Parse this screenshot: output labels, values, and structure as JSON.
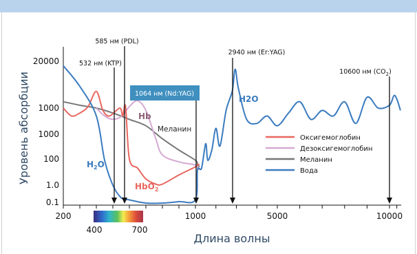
{
  "chart_data": {
    "type": "line",
    "xlabel": "Длина волны",
    "ylabel": "Уровень абсорбции",
    "x_ticks": [
      "200",
      "1000",
      "5000",
      "10000"
    ],
    "y_ticks": [
      "20000",
      "1000",
      "1000",
      "100",
      "1.0",
      "0.1"
    ],
    "spectrum_bar_labels": [
      "400",
      "700"
    ],
    "laser_markers": [
      {
        "wavelength": 532,
        "label": "532 нм (KTP)"
      },
      {
        "wavelength": 585,
        "label": "585 нм (PDL)"
      },
      {
        "wavelength": 1064,
        "label": "1064 нм (Nd:YAG)",
        "highlight": true
      },
      {
        "wavelength": 2940,
        "label": "2940 нм (Er:YAG)"
      },
      {
        "wavelength": 10600,
        "label_main": "10600 нм (CO",
        "label_sub": "2",
        "label_end": ")"
      }
    ],
    "curve_labels": [
      {
        "text_main": "H",
        "text_sub": "2",
        "text_end": "O",
        "color": "#3a7bbf"
      },
      {
        "text_main": "H2O",
        "text_sub": "",
        "text_end": "",
        "color": "#3a7bbf"
      },
      {
        "text_main": "Hb",
        "text_sub": "",
        "text_end": "",
        "color": "#8e6478"
      },
      {
        "text_main": "HbO",
        "text_sub": "2",
        "text_end": "",
        "color": "#e8675f"
      },
      {
        "text_main": "Меланин",
        "text_sub": "",
        "text_end": "",
        "color": "#222222"
      }
    ],
    "legend": {
      "placement": "right",
      "items": [
        "Оксигемоглобин",
        "Дезоксигемоглобин",
        "Меланин",
        "Вода"
      ]
    },
    "series": [
      {
        "name": "Оксигемоглобин",
        "color": "#e8675f",
        "points": [
          [
            200,
            1000
          ],
          [
            250,
            700
          ],
          [
            300,
            800
          ],
          [
            350,
            1100
          ],
          [
            400,
            2900
          ],
          [
            440,
            900
          ],
          [
            480,
            700
          ],
          [
            542,
            1000
          ],
          [
            560,
            700
          ],
          [
            577,
            1100
          ],
          [
            600,
            100
          ],
          [
            650,
            20
          ],
          [
            700,
            3
          ],
          [
            760,
            1.2
          ],
          [
            800,
            1.2
          ],
          [
            900,
            6
          ],
          [
            1000,
            25
          ],
          [
            1100,
            35
          ],
          [
            1200,
            40
          ]
        ]
      },
      {
        "name": "Дезоксигемоглобин",
        "color": "#d5a9d3",
        "points": [
          [
            400,
            1000
          ],
          [
            450,
            700
          ],
          [
            500,
            600
          ],
          [
            555,
            700
          ],
          [
            600,
            1100
          ],
          [
            650,
            1600
          ],
          [
            700,
            900
          ],
          [
            760,
            250
          ],
          [
            800,
            120
          ],
          [
            900,
            60
          ],
          [
            1000,
            35
          ],
          [
            1100,
            20
          ],
          [
            1200,
            15
          ]
        ]
      },
      {
        "name": "Меланин",
        "color": "#777777",
        "points": [
          [
            200,
            1500
          ],
          [
            300,
            1200
          ],
          [
            400,
            1000
          ],
          [
            500,
            800
          ],
          [
            600,
            600
          ],
          [
            700,
            450
          ],
          [
            800,
            250
          ],
          [
            900,
            150
          ],
          [
            1000,
            80
          ],
          [
            1100,
            40
          ],
          [
            1200,
            25
          ]
        ]
      },
      {
        "name": "Вода",
        "color": "#3a7bbf",
        "points": [
          [
            200,
            15000
          ],
          [
            300,
            4000
          ],
          [
            400,
            700
          ],
          [
            450,
            80
          ],
          [
            500,
            1.0
          ],
          [
            550,
            0.2
          ],
          [
            600,
            0.15
          ],
          [
            700,
            0.1
          ],
          [
            800,
            0.1
          ],
          [
            900,
            0.12
          ],
          [
            1000,
            0.15
          ],
          [
            1100,
            15
          ],
          [
            1300,
            20
          ],
          [
            1500,
            200
          ],
          [
            1600,
            80
          ],
          [
            1800,
            150
          ],
          [
            2000,
            400
          ],
          [
            2200,
            180
          ],
          [
            2500,
            900
          ],
          [
            2800,
            3000
          ],
          [
            2940,
            12000
          ],
          [
            3100,
            3500
          ],
          [
            3500,
            600
          ],
          [
            4000,
            500
          ],
          [
            4500,
            700
          ],
          [
            5000,
            450
          ],
          [
            5500,
            800
          ],
          [
            6000,
            1500
          ],
          [
            6500,
            600
          ],
          [
            7000,
            900
          ],
          [
            7500,
            700
          ],
          [
            8000,
            1500
          ],
          [
            8500,
            500
          ],
          [
            9000,
            2000
          ],
          [
            9500,
            1000
          ],
          [
            10000,
            1200
          ],
          [
            10600,
            2200
          ],
          [
            11000,
            1800
          ],
          [
            11500,
            900
          ]
        ]
      }
    ],
    "grid": false
  }
}
